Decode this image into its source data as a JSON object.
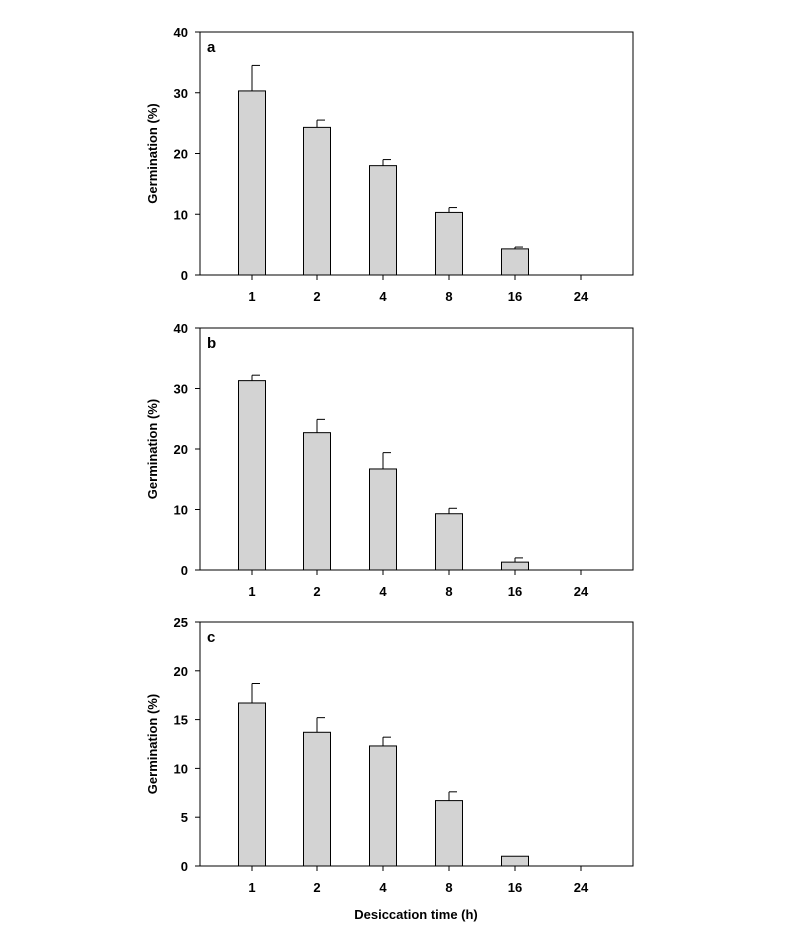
{
  "figure": {
    "xlabel": "Desiccation time (h)",
    "bar_color": "#d3d3d3",
    "edge_color": "#000000"
  },
  "chart_data": [
    {
      "type": "bar",
      "panel": "a",
      "ylabel": "Germination (%)",
      "categories": [
        "1",
        "2",
        "4",
        "8",
        "16",
        "24"
      ],
      "values": [
        30.3,
        24.3,
        18.0,
        10.3,
        4.3,
        0
      ],
      "errors": [
        4.2,
        1.2,
        1.0,
        0.8,
        0.3,
        0
      ],
      "ylim": [
        0,
        40
      ],
      "yticks": [
        0,
        10,
        20,
        30,
        40
      ]
    },
    {
      "type": "bar",
      "panel": "b",
      "ylabel": "Germination (%)",
      "categories": [
        "1",
        "2",
        "4",
        "8",
        "16",
        "24"
      ],
      "values": [
        31.3,
        22.7,
        16.7,
        9.3,
        1.3,
        0
      ],
      "errors": [
        0.9,
        2.2,
        2.7,
        0.9,
        0.7,
        0
      ],
      "ylim": [
        0,
        40
      ],
      "yticks": [
        0,
        10,
        20,
        30,
        40
      ]
    },
    {
      "type": "bar",
      "panel": "c",
      "ylabel": "Germination (%)",
      "categories": [
        "1",
        "2",
        "4",
        "8",
        "16",
        "24"
      ],
      "values": [
        16.7,
        13.7,
        12.3,
        6.7,
        1.0,
        0
      ],
      "errors": [
        2.0,
        1.5,
        0.9,
        0.9,
        0,
        0
      ],
      "ylim": [
        0,
        25
      ],
      "yticks": [
        0,
        5,
        10,
        15,
        20,
        25
      ]
    }
  ]
}
